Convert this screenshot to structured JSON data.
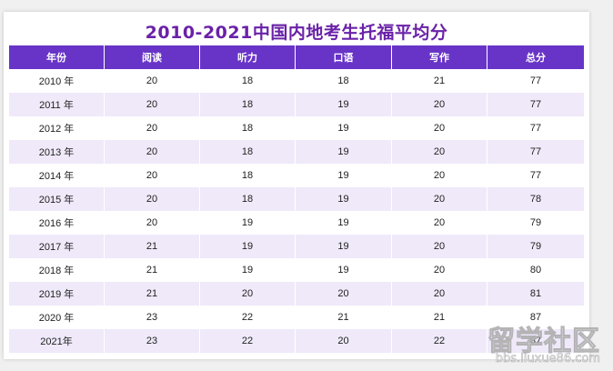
{
  "title": "2010-2021中国内地考生托福平均分",
  "headers": [
    "年份",
    "阅读",
    "听力",
    "口语",
    "写作",
    "总分"
  ],
  "rows": [
    [
      "2010 年",
      "20",
      "18",
      "18",
      "21",
      "77"
    ],
    [
      "2011 年",
      "20",
      "18",
      "19",
      "20",
      "77"
    ],
    [
      "2012 年",
      "20",
      "18",
      "19",
      "20",
      "77"
    ],
    [
      "2013 年",
      "20",
      "18",
      "19",
      "20",
      "77"
    ],
    [
      "2014 年",
      "20",
      "18",
      "19",
      "20",
      "77"
    ],
    [
      "2015 年",
      "20",
      "18",
      "19",
      "20",
      "78"
    ],
    [
      "2016 年",
      "20",
      "19",
      "19",
      "20",
      "79"
    ],
    [
      "2017 年",
      "21",
      "19",
      "19",
      "20",
      "79"
    ],
    [
      "2018 年",
      "21",
      "19",
      "19",
      "20",
      "80"
    ],
    [
      "2019 年",
      "21",
      "20",
      "20",
      "20",
      "81"
    ],
    [
      "2020 年",
      "23",
      "22",
      "21",
      "21",
      "87"
    ],
    [
      "2021年",
      "23",
      "22",
      "20",
      "22",
      "87"
    ]
  ],
  "watermark": {
    "main": "留学社区",
    "url": "bbs.liuxue86.com"
  },
  "colors": {
    "title": "#6a22a8",
    "header_bg": "#6834c8",
    "stripe": "#efe9f9"
  }
}
